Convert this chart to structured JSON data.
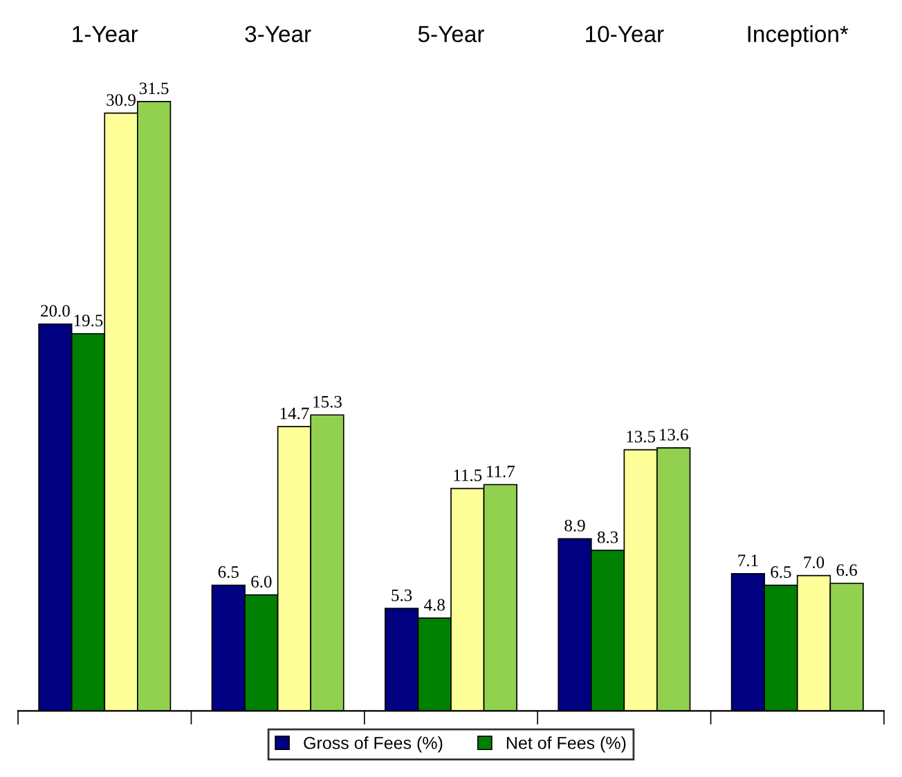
{
  "chart_data": {
    "type": "bar",
    "categories": [
      "1-Year",
      "3-Year",
      "5-Year",
      "10-Year",
      "Inception*"
    ],
    "series": [
      {
        "name": "Gross of Fees (%)",
        "color": "#000080",
        "values": [
          20.0,
          6.5,
          5.3,
          8.9,
          7.1
        ],
        "value_labels": [
          "20.0",
          "6.5",
          "5.3",
          "8.9",
          "7.1"
        ]
      },
      {
        "name": "Net of Fees (%)",
        "color": "#008000",
        "values": [
          19.5,
          6.0,
          4.8,
          8.3,
          6.5
        ],
        "value_labels": [
          "19.5",
          "6.0",
          "4.8",
          "8.3",
          "6.5"
        ]
      },
      {
        "color": "#ffff99",
        "values": [
          30.9,
          14.7,
          11.5,
          13.5,
          7.0
        ],
        "value_labels": [
          "30.9",
          "14.7",
          "11.5",
          "13.5",
          "7.0"
        ]
      },
      {
        "color": "#92d050",
        "values": [
          31.5,
          15.3,
          11.7,
          13.6,
          6.6
        ],
        "value_labels": [
          "31.5",
          "15.3",
          "11.7",
          "13.6",
          "6.6"
        ]
      }
    ],
    "grid": false,
    "legend": "bottom"
  }
}
